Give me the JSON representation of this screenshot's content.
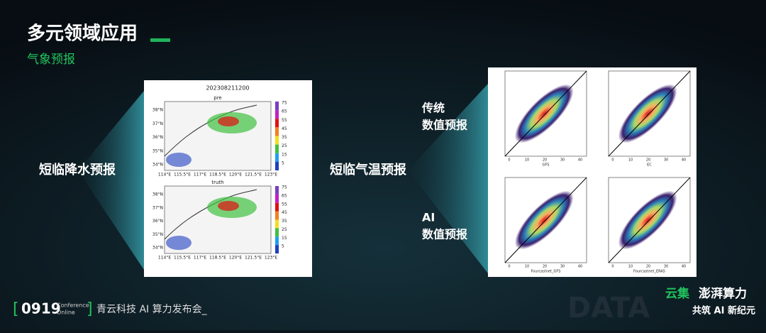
{
  "header": {
    "title": "多元领域应用",
    "subtitle": "气象预报"
  },
  "sections": [
    "短临降水预报",
    "短临气温预报"
  ],
  "precip_figure": {
    "title": "202308211200",
    "panels": [
      "pre",
      "truth"
    ],
    "lat_labels": [
      "38°N",
      "37°N",
      "36°N",
      "35°N",
      "34°N"
    ],
    "lon_labels": [
      "114°E",
      "115.5°E",
      "117°E",
      "118.5°E",
      "120°E",
      "121.5°E",
      "123°E"
    ],
    "colorbar_labels": [
      "75",
      "65",
      "55",
      "45",
      "35",
      "25",
      "15",
      "5"
    ]
  },
  "temp_figure": {
    "rows": [
      [
        "传统",
        "数值预报"
      ],
      [
        "AI",
        "数值预报"
      ]
    ],
    "x_labels": [
      "GFS",
      "EC",
      "Fourcastnet_GFS",
      "Fourcastnet_ERA5"
    ],
    "axis_ticks": [
      "0",
      "10",
      "20",
      "30",
      "40"
    ]
  },
  "footer": {
    "date": "0919",
    "conference": "Conference",
    "online": "Online",
    "event": "青云科技 AI 算力发布会_",
    "brand_a": "云集",
    "brand_b": "澎湃算力",
    "slogan": "共筑 AI 新纪元",
    "watermark": "DATA"
  }
}
